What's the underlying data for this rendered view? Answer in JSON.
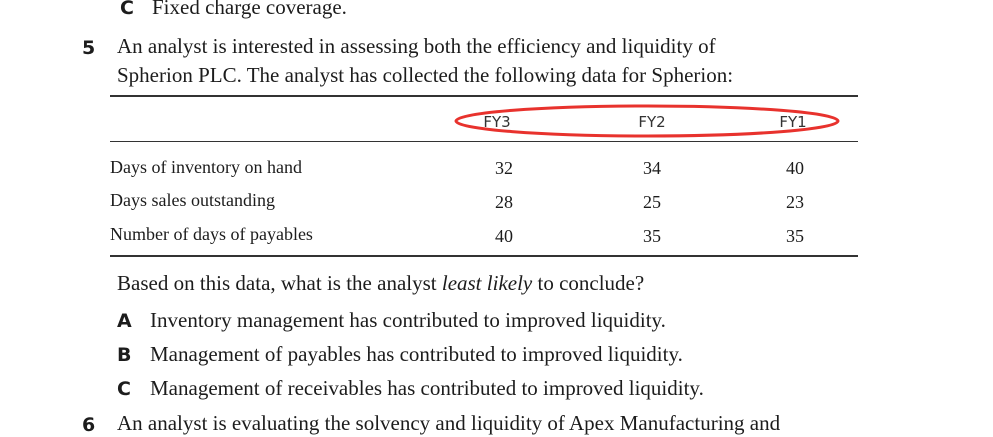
{
  "prev_option": {
    "letter": "C",
    "text": "Fixed charge coverage."
  },
  "q5": {
    "number": "5",
    "line1": "An analyst is interested in assessing both the efficiency and liquidity of",
    "line2": "Spherion PLC. The analyst has collected the following data for Spherion:"
  },
  "table": {
    "headers": [
      "FY3",
      "FY2",
      "FY1"
    ],
    "rows": [
      {
        "label": "Days of inventory on hand",
        "values": [
          "32",
          "34",
          "40"
        ]
      },
      {
        "label": "Days sales outstanding",
        "values": [
          "28",
          "25",
          "23"
        ]
      },
      {
        "label": "Number of days of payables",
        "values": [
          "40",
          "35",
          "35"
        ]
      }
    ],
    "highlight_color": "#e8322d"
  },
  "question": {
    "before": "Based on this data, what is the analyst ",
    "emphasis": "least likely",
    "after": " to conclude?"
  },
  "options": [
    {
      "letter": "A",
      "text": "Inventory management has contributed to improved liquidity."
    },
    {
      "letter": "B",
      "text": "Management of payables has contributed to improved liquidity."
    },
    {
      "letter": "C",
      "text": "Management of receivables has contributed to improved liquidity."
    }
  ],
  "q6": {
    "number": "6",
    "line1": "An analyst is evaluating the solvency and liquidity of Apex Manufacturing and"
  }
}
